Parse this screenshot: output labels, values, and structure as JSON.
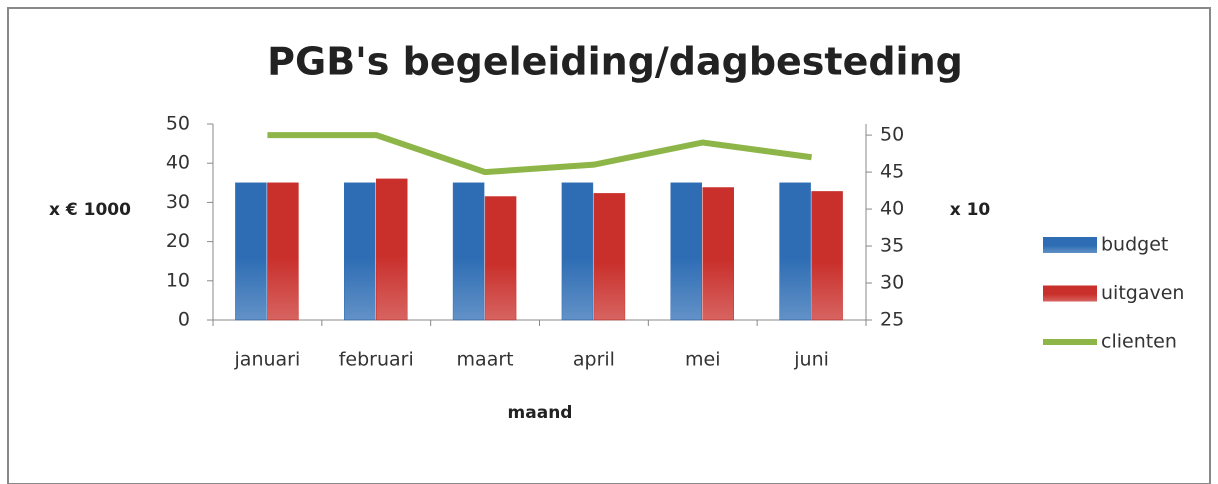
{
  "chart_data": {
    "type": "bar",
    "title": "PGB's begeleiding/dagbesteding",
    "x_label": "maand",
    "y_label": "x € 1000",
    "y2_label": "x 10",
    "categories": [
      "januari",
      "februari",
      "maart",
      "april",
      "mei",
      "juni"
    ],
    "series": [
      {
        "name": "budget",
        "type": "bar",
        "color": "#2e6db4",
        "values": [
          35,
          35,
          35,
          35,
          35,
          35
        ]
      },
      {
        "name": "uitgaven",
        "type": "bar",
        "color": "#c9302c",
        "values": [
          35,
          36,
          31.5,
          32.3,
          33.8,
          32.8
        ]
      },
      {
        "name": "clienten",
        "type": "line",
        "axis": "y2",
        "color": "#8db548",
        "values": [
          50,
          50,
          45,
          46,
          49,
          47
        ]
      }
    ],
    "ylim": [
      0,
      50
    ],
    "yticks": [
      0,
      10,
      20,
      30,
      40,
      50
    ],
    "y2lim": [
      25,
      51.5
    ],
    "y2ticks": [
      25,
      30,
      35,
      40,
      45,
      50
    ],
    "grid": false,
    "legend": "right"
  }
}
